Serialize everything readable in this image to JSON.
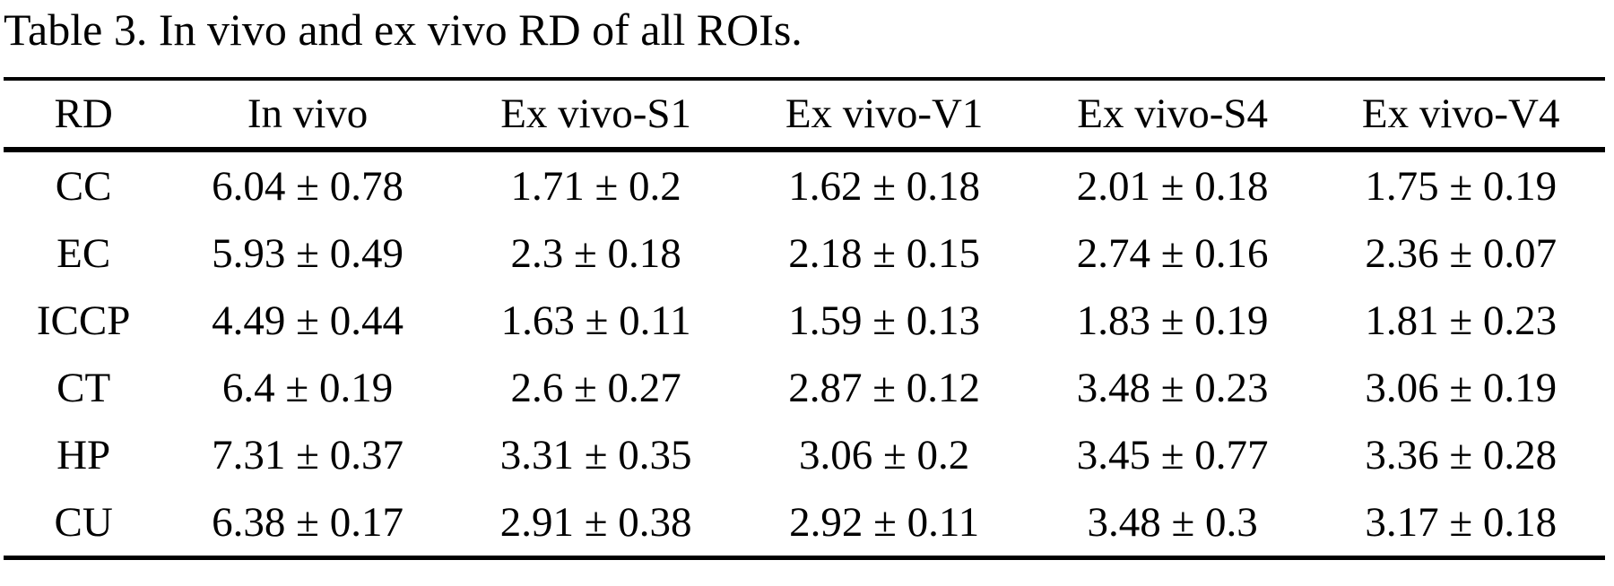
{
  "caption": "Table 3. In vivo and ex vivo RD of all ROIs.",
  "table": {
    "columns": [
      "RD",
      "In vivo",
      "Ex vivo-S1",
      "Ex vivo-V1",
      "Ex vivo-S4",
      "Ex vivo-V4"
    ],
    "rows": [
      {
        "label": "CC",
        "values": [
          "6.04 ± 0.78",
          "1.71 ± 0.2",
          "1.62 ± 0.18",
          "2.01 ± 0.18",
          "1.75 ± 0.19"
        ]
      },
      {
        "label": "EC",
        "values": [
          "5.93 ± 0.49",
          "2.3 ± 0.18",
          "2.18 ± 0.15",
          "2.74 ± 0.16",
          "2.36 ± 0.07"
        ]
      },
      {
        "label": "ICCP",
        "values": [
          "4.49 ± 0.44",
          "1.63 ± 0.11",
          "1.59 ± 0.13",
          "1.83 ± 0.19",
          "1.81 ± 0.23"
        ]
      },
      {
        "label": "CT",
        "values": [
          "6.4 ± 0.19",
          "2.6 ± 0.27",
          "2.87 ± 0.12",
          "3.48 ± 0.23",
          "3.06 ± 0.19"
        ]
      },
      {
        "label": "HP",
        "values": [
          "7.31 ± 0.37",
          "3.31 ± 0.35",
          "3.06 ± 0.2",
          "3.45 ± 0.77",
          "3.36 ± 0.28"
        ]
      },
      {
        "label": "CU",
        "values": [
          "6.38 ± 0.17",
          "2.91 ± 0.38",
          "2.92 ± 0.11",
          "3.48 ± 0.3",
          "3.17 ± 0.18"
        ]
      }
    ]
  },
  "colors": {
    "text": "#000000",
    "background": "#ffffff",
    "rule": "#000000"
  }
}
